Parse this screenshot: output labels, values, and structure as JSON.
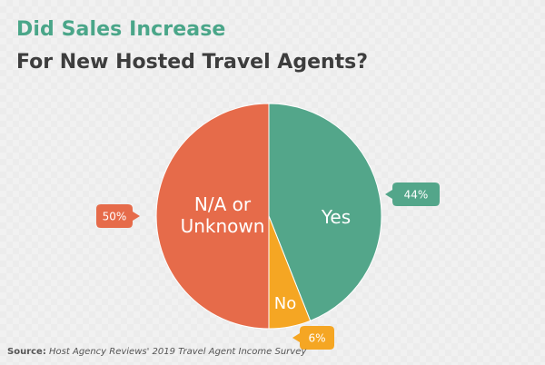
{
  "header": {
    "title": "Did Sales Increase",
    "subtitle": "For New Hosted Travel Agents?"
  },
  "source": {
    "label": "Source:",
    "text": "Host Agency Reviews' 2019 Travel Agent Income Survey"
  },
  "colors": {
    "title": "#4aa689",
    "subtitle": "#3d3d3d",
    "background": "#f1f1f1"
  },
  "chart_data": {
    "type": "pie",
    "title": "Did Sales Increase",
    "subtitle": "For New Hosted Travel Agents?",
    "start_angle_deg": 0,
    "direction": "clockwise",
    "slices": [
      {
        "label": "Yes",
        "value": 44,
        "value_label": "44%",
        "color": "#53a68a",
        "callout_side": "right"
      },
      {
        "label": "No",
        "value": 6,
        "value_label": "6%",
        "color": "#f5a623",
        "callout_side": "bottom-right"
      },
      {
        "label": "N/A or Unknown",
        "label_lines": [
          "N/A or",
          "Unknown"
        ],
        "value": 50,
        "value_label": "50%",
        "color": "#e66b4a",
        "callout_side": "left"
      }
    ]
  }
}
